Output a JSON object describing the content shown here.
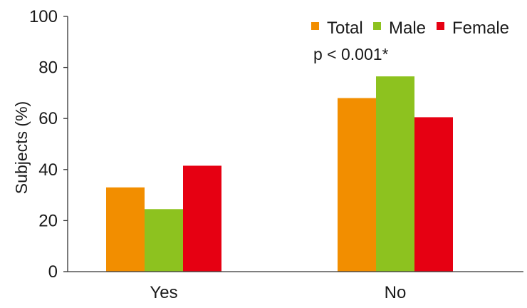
{
  "chart_data": {
    "type": "bar",
    "categories": [
      "Yes",
      "No"
    ],
    "series": [
      {
        "name": "Total",
        "values": [
          33,
          68
        ],
        "color": "#F28E00"
      },
      {
        "name": "Male",
        "values": [
          24.5,
          76.5
        ],
        "color": "#8DC21F"
      },
      {
        "name": "Female",
        "values": [
          41.5,
          60.5
        ],
        "color": "#E60012"
      }
    ],
    "title": "",
    "xlabel": "",
    "ylabel": "Subjects (%)",
    "ylim": [
      0,
      100
    ],
    "yticks": [
      0,
      20,
      40,
      60,
      80,
      100
    ],
    "grid": false,
    "legend_position": "top-right",
    "annotation": "p < 0.001*"
  }
}
